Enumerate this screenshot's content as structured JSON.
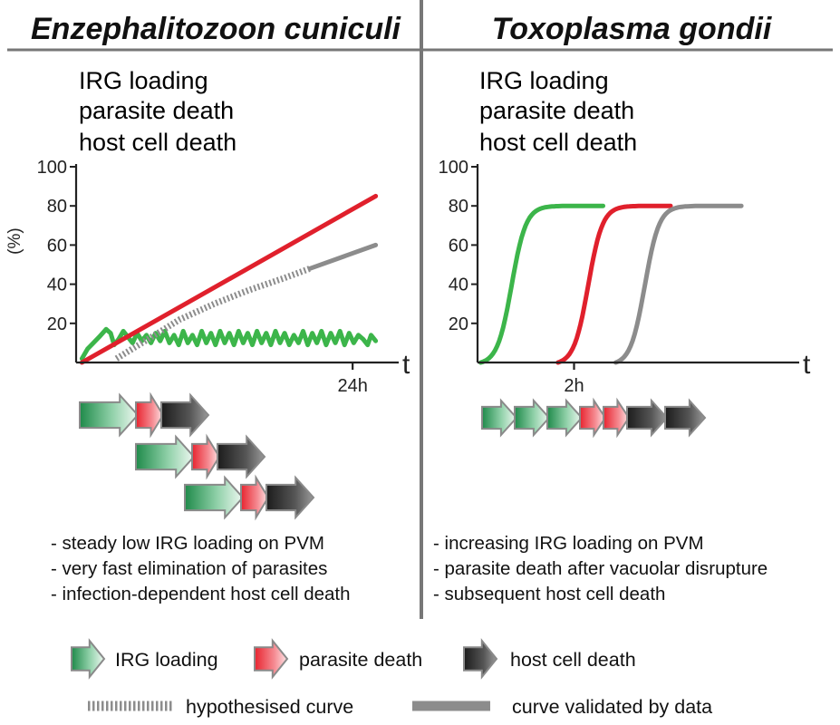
{
  "colors": {
    "irg": "#3cb54a",
    "parasite": "#e0202c",
    "host": "#8c8c8c",
    "divider": "#777777",
    "axis": "#222222"
  },
  "panels": [
    {
      "title": "Enzephalitozoon cuniculi",
      "legend": [
        "IRG loading",
        "parasite death",
        "host cell death"
      ],
      "bullets": [
        "- steady low IRG loading on PVM",
        "- very fast elimination of parasites",
        "- infection-dependent host cell death"
      ]
    },
    {
      "title": "Toxoplasma gondii",
      "legend": [
        "IRG loading",
        "parasite death",
        "host cell death"
      ],
      "bullets": [
        "- increasing IRG loading on PVM",
        "- parasite death after vacuolar disrupture",
        "- subsequent host cell death"
      ]
    }
  ],
  "chart_data": [
    {
      "type": "line",
      "title": "Enzephalitozoon cuniculi",
      "ylabel": "(%)",
      "xlabel": "t",
      "x_tick_label": "24h",
      "ylim": [
        0,
        100
      ],
      "yticks": [
        20,
        40,
        60,
        80,
        100
      ],
      "xlim": [
        0,
        28
      ],
      "x_tick_at": 24,
      "series": [
        {
          "name": "IRG loading",
          "color_key": "irg",
          "style": "solid",
          "points": [
            [
              0.5,
              2
            ],
            [
              1,
              7
            ],
            [
              1.5,
              10
            ],
            [
              2,
              13
            ],
            [
              2.6,
              17
            ],
            [
              3,
              15
            ],
            [
              3.3,
              9
            ],
            [
              3.7,
              12
            ],
            [
              4.1,
              16
            ],
            [
              4.5,
              13
            ],
            [
              4.9,
              10
            ],
            [
              5.3,
              15
            ],
            [
              5.7,
              11
            ],
            [
              6.1,
              14
            ],
            [
              6.5,
              10
            ],
            [
              6.9,
              15
            ],
            [
              7.3,
              11
            ],
            [
              7.7,
              16
            ],
            [
              8.1,
              10
            ],
            [
              8.5,
              14
            ],
            [
              8.9,
              9
            ],
            [
              9.3,
              16
            ],
            [
              9.7,
              10
            ],
            [
              10.1,
              14
            ],
            [
              10.5,
              9
            ],
            [
              10.9,
              16
            ],
            [
              11.3,
              10
            ],
            [
              11.7,
              15
            ],
            [
              12.1,
              9
            ],
            [
              12.5,
              16
            ],
            [
              12.9,
              10
            ],
            [
              13.3,
              15
            ],
            [
              13.7,
              9
            ],
            [
              14.1,
              16
            ],
            [
              14.5,
              10
            ],
            [
              14.9,
              15
            ],
            [
              15.3,
              9
            ],
            [
              15.7,
              16
            ],
            [
              16.1,
              10
            ],
            [
              16.5,
              15
            ],
            [
              16.9,
              9
            ],
            [
              17.3,
              16
            ],
            [
              17.7,
              10
            ],
            [
              18.1,
              15
            ],
            [
              18.5,
              9
            ],
            [
              18.9,
              14
            ],
            [
              19.3,
              10
            ],
            [
              19.7,
              16
            ],
            [
              20.1,
              9
            ],
            [
              20.5,
              15
            ],
            [
              20.9,
              10
            ],
            [
              21.3,
              16
            ],
            [
              21.7,
              9
            ],
            [
              22.1,
              15
            ],
            [
              22.5,
              10
            ],
            [
              22.9,
              16
            ],
            [
              23.3,
              9
            ],
            [
              23.7,
              15
            ],
            [
              24.1,
              10
            ],
            [
              24.5,
              14
            ],
            [
              24.9,
              12
            ],
            [
              25.3,
              9
            ],
            [
              25.6,
              14
            ],
            [
              26,
              11
            ]
          ]
        },
        {
          "name": "parasite death",
          "color_key": "parasite",
          "style": "solid",
          "points": [
            [
              0.5,
              0
            ],
            [
              26,
              85
            ]
          ]
        },
        {
          "name": "host cell death",
          "color_key": "host",
          "style": "dotted",
          "points": [
            [
              3.5,
              2
            ],
            [
              6,
              11
            ],
            [
              9,
              22
            ],
            [
              12,
              30
            ],
            [
              15,
              37
            ],
            [
              18,
              43
            ],
            [
              20.3,
              48
            ]
          ]
        },
        {
          "name": "host cell death",
          "color_key": "host",
          "style": "solid",
          "points": [
            [
              20.3,
              48
            ],
            [
              26,
              60
            ]
          ]
        }
      ]
    },
    {
      "type": "line",
      "title": "Toxoplasma gondii",
      "ylabel": "",
      "xlabel": "t",
      "x_tick_label": "2h",
      "ylim": [
        0,
        100
      ],
      "yticks": [
        20,
        40,
        60,
        80,
        100
      ],
      "xlim": [
        0,
        5
      ],
      "x_tick_at": 1.5,
      "series": [
        {
          "name": "IRG loading",
          "color_key": "irg",
          "style": "solid",
          "sigmoid": {
            "start": 0.05,
            "mid": 0.53,
            "end": 1.95,
            "steepness": 9,
            "max": 80
          }
        },
        {
          "name": "parasite death",
          "color_key": "parasite",
          "style": "solid",
          "sigmoid": {
            "start": 1.25,
            "mid": 1.72,
            "end": 3.0,
            "steepness": 9,
            "max": 80
          }
        },
        {
          "name": "host cell death",
          "color_key": "host",
          "style": "solid",
          "sigmoid": {
            "start": 2.15,
            "mid": 2.6,
            "end": 4.1,
            "steepness": 9,
            "max": 80
          }
        }
      ]
    }
  ],
  "arrow_rows": {
    "left": [
      [
        "irg",
        "parasite",
        "host"
      ],
      [
        "irg",
        "parasite",
        "host"
      ],
      [
        "irg",
        "parasite",
        "host"
      ]
    ],
    "right": [
      "irg",
      "irg",
      "irg",
      "parasite",
      "parasite",
      "host",
      "host"
    ]
  },
  "key": {
    "irg_label": "IRG loading",
    "parasite_label": "parasite death",
    "host_label": "host cell death",
    "hypothesised_label": "hypothesised curve",
    "validated_label": "curve validated by data"
  }
}
